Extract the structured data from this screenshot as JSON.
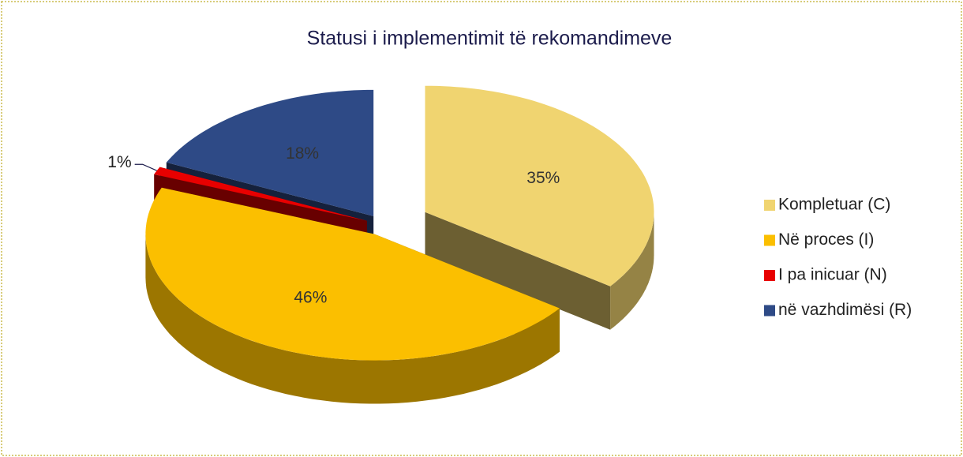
{
  "chart_data": {
    "type": "pie",
    "title": "Statusi i implementimit të rekomandimeve",
    "categories": [
      "Kompletuar (C)",
      "Në proces (I)",
      "I pa inicuar (N)",
      "në vazhdimësi (R)"
    ],
    "values": [
      35,
      46,
      1,
      18
    ],
    "value_labels": [
      "35%",
      "46%",
      "1%",
      "18%"
    ],
    "colors": [
      "#f0d470",
      "#fbbf00",
      "#e80000",
      "#2e4a86"
    ],
    "legend": "right"
  }
}
